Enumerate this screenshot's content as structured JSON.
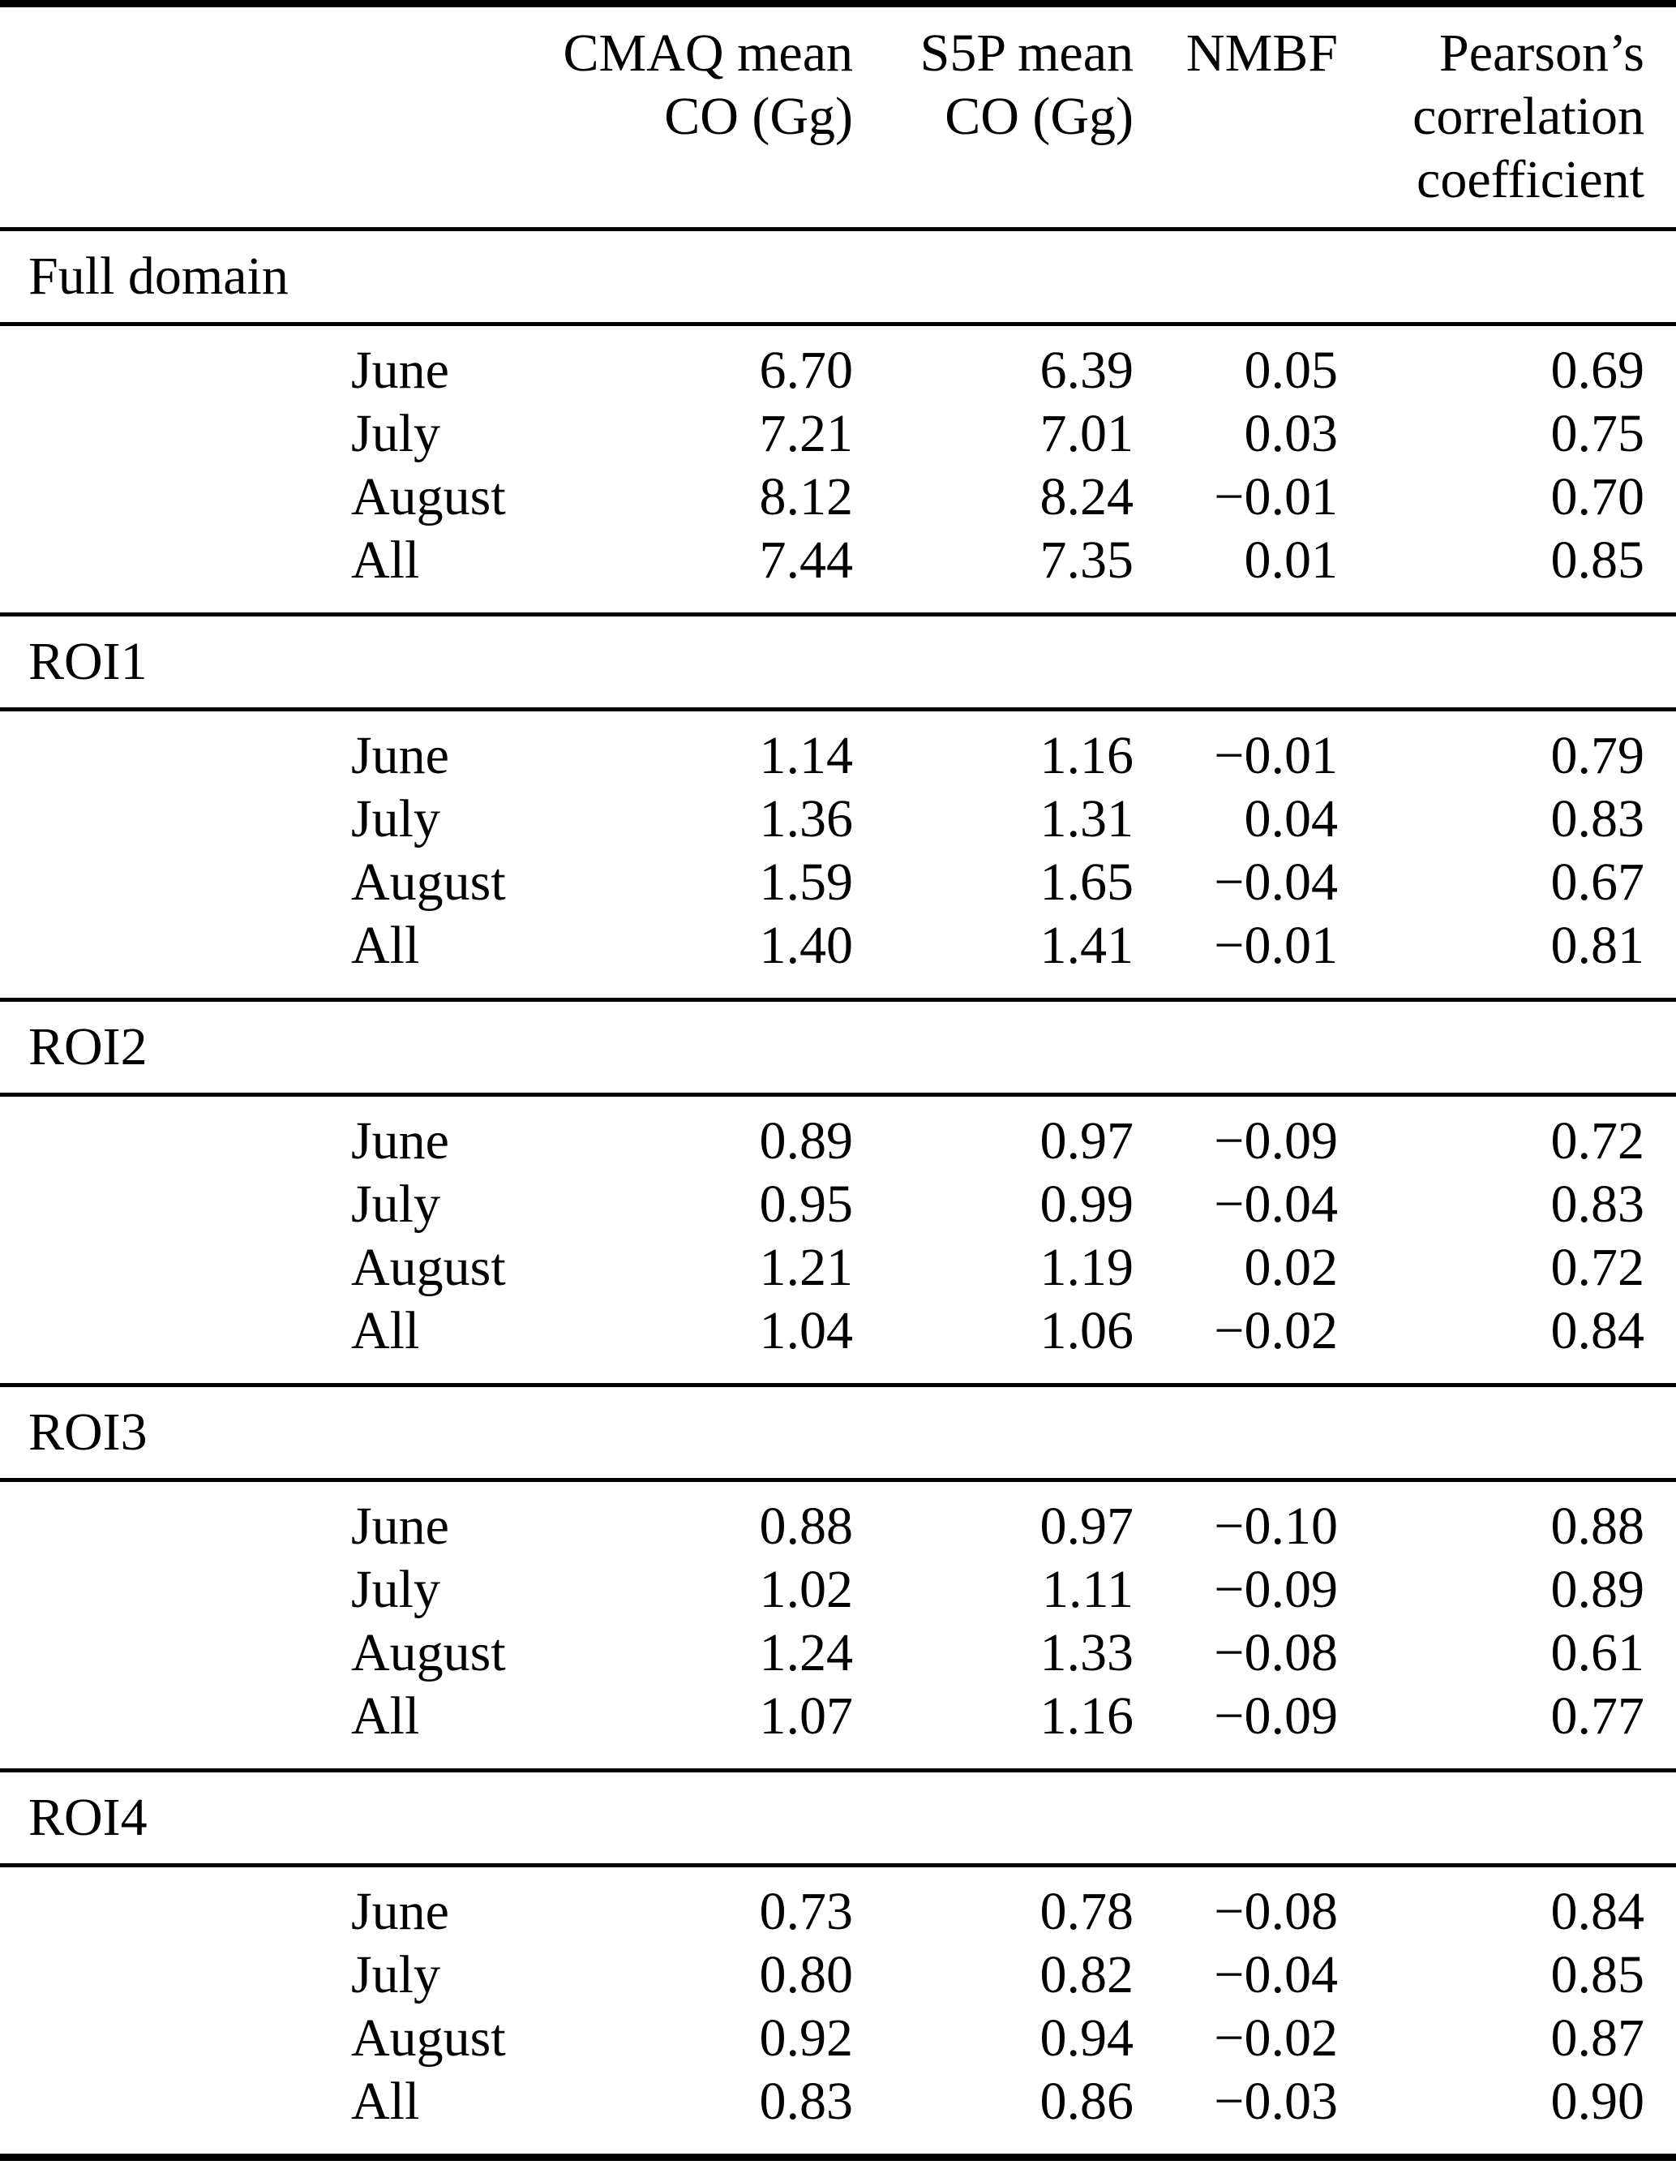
{
  "page": {
    "background": "#ffffff",
    "text_color": "#000000",
    "rule_color": "#000000"
  },
  "header": {
    "cmaq": [
      "CMAQ mean",
      "CO (Gg)"
    ],
    "s5p": [
      "S5P mean",
      "CO (Gg)"
    ],
    "nmbf": [
      "NMBF"
    ],
    "pearson": [
      "Pearson’s",
      "correlation",
      "coefficient"
    ]
  },
  "sections": [
    {
      "label": "Full domain",
      "rows": [
        {
          "month": "June",
          "cmaq": "6.70",
          "s5p": "6.39",
          "nmbf": "0.05",
          "pearson": "0.69"
        },
        {
          "month": "July",
          "cmaq": "7.21",
          "s5p": "7.01",
          "nmbf": "0.03",
          "pearson": "0.75"
        },
        {
          "month": "August",
          "cmaq": "8.12",
          "s5p": "8.24",
          "nmbf": "−0.01",
          "pearson": "0.70"
        },
        {
          "month": "All",
          "cmaq": "7.44",
          "s5p": "7.35",
          "nmbf": "0.01",
          "pearson": "0.85"
        }
      ]
    },
    {
      "label": "ROI1",
      "rows": [
        {
          "month": "June",
          "cmaq": "1.14",
          "s5p": "1.16",
          "nmbf": "−0.01",
          "pearson": "0.79"
        },
        {
          "month": "July",
          "cmaq": "1.36",
          "s5p": "1.31",
          "nmbf": "0.04",
          "pearson": "0.83"
        },
        {
          "month": "August",
          "cmaq": "1.59",
          "s5p": "1.65",
          "nmbf": "−0.04",
          "pearson": "0.67"
        },
        {
          "month": "All",
          "cmaq": "1.40",
          "s5p": "1.41",
          "nmbf": "−0.01",
          "pearson": "0.81"
        }
      ]
    },
    {
      "label": "ROI2",
      "rows": [
        {
          "month": "June",
          "cmaq": "0.89",
          "s5p": "0.97",
          "nmbf": "−0.09",
          "pearson": "0.72"
        },
        {
          "month": "July",
          "cmaq": "0.95",
          "s5p": "0.99",
          "nmbf": "−0.04",
          "pearson": "0.83"
        },
        {
          "month": "August",
          "cmaq": "1.21",
          "s5p": "1.19",
          "nmbf": "0.02",
          "pearson": "0.72"
        },
        {
          "month": "All",
          "cmaq": "1.04",
          "s5p": "1.06",
          "nmbf": "−0.02",
          "pearson": "0.84"
        }
      ]
    },
    {
      "label": "ROI3",
      "rows": [
        {
          "month": "June",
          "cmaq": "0.88",
          "s5p": "0.97",
          "nmbf": "−0.10",
          "pearson": "0.88"
        },
        {
          "month": "July",
          "cmaq": "1.02",
          "s5p": "1.11",
          "nmbf": "−0.09",
          "pearson": "0.89"
        },
        {
          "month": "August",
          "cmaq": "1.24",
          "s5p": "1.33",
          "nmbf": "−0.08",
          "pearson": "0.61"
        },
        {
          "month": "All",
          "cmaq": "1.07",
          "s5p": "1.16",
          "nmbf": "−0.09",
          "pearson": "0.77"
        }
      ]
    },
    {
      "label": "ROI4",
      "rows": [
        {
          "month": "June",
          "cmaq": "0.73",
          "s5p": "0.78",
          "nmbf": "−0.08",
          "pearson": "0.84"
        },
        {
          "month": "July",
          "cmaq": "0.80",
          "s5p": "0.82",
          "nmbf": "−0.04",
          "pearson": "0.85"
        },
        {
          "month": "August",
          "cmaq": "0.92",
          "s5p": "0.94",
          "nmbf": "−0.02",
          "pearson": "0.87"
        },
        {
          "month": "All",
          "cmaq": "0.83",
          "s5p": "0.86",
          "nmbf": "−0.03",
          "pearson": "0.90"
        }
      ]
    }
  ]
}
